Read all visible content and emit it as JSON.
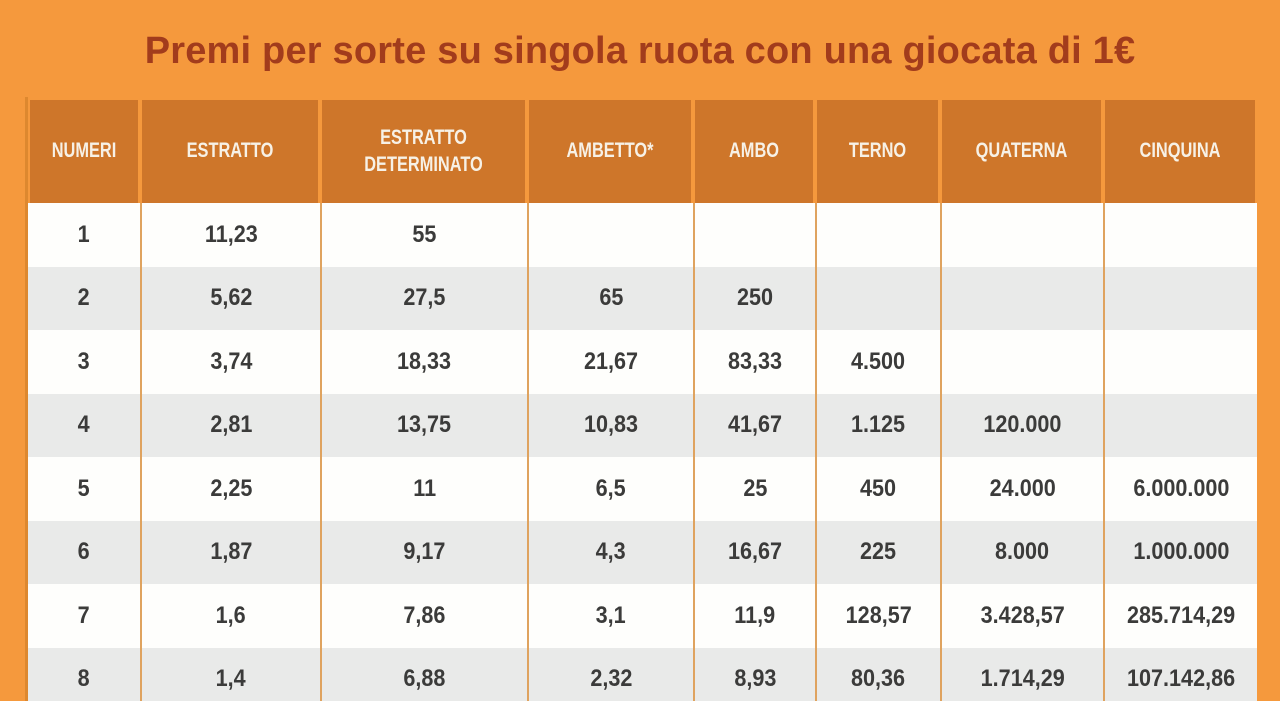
{
  "title": "Premi per sorte su singola ruota con una giocata di 1€",
  "colors": {
    "bg": "#F5993D",
    "header-bg": "#CE762A",
    "header-text": "#F7F1E6",
    "title-color": "#A23C1C",
    "row-white": "#FEFEFC",
    "row-gray": "#E9EAE9",
    "cell-text": "#3B3B3A",
    "divider": "#DFA35F",
    "table-border": "#DD882F"
  },
  "table": {
    "columns": [
      "NUMERI",
      "ESTRATTO",
      "ESTRATTO DETERMINATO",
      "AMBETTO*",
      "AMBO",
      "TERNO",
      "QUATERNA",
      "CINQUINA"
    ],
    "rows": [
      [
        "1",
        "11,23",
        "55",
        "",
        "",
        "",
        "",
        ""
      ],
      [
        "2",
        "5,62",
        "27,5",
        "65",
        "250",
        "",
        "",
        ""
      ],
      [
        "3",
        "3,74",
        "18,33",
        "21,67",
        "83,33",
        "4.500",
        "",
        ""
      ],
      [
        "4",
        "2,81",
        "13,75",
        "10,83",
        "41,67",
        "1.125",
        "120.000",
        ""
      ],
      [
        "5",
        "2,25",
        "11",
        "6,5",
        "25",
        "450",
        "24.000",
        "6.000.000"
      ],
      [
        "6",
        "1,87",
        "9,17",
        "4,3",
        "16,67",
        "225",
        "8.000",
        "1.000.000"
      ],
      [
        "7",
        "1,6",
        "7,86",
        "3,1",
        "11,9",
        "128,57",
        "3.428,57",
        "285.714,29"
      ],
      [
        "8",
        "1,4",
        "6,88",
        "2,32",
        "8,93",
        "80,36",
        "1.714,29",
        "107.142,86"
      ]
    ]
  }
}
